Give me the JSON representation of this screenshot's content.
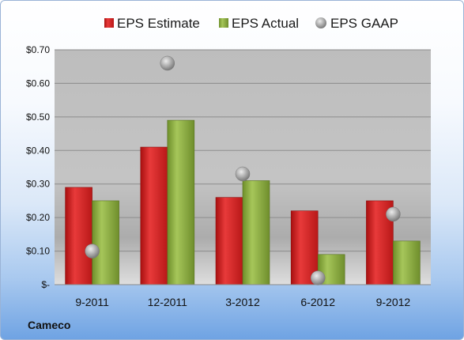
{
  "company": "Cameco",
  "colors": {
    "estimate": "#d42a2a",
    "actual": "#8aac3e",
    "gaap": "#a8a8a8"
  },
  "chart_data": {
    "type": "bar",
    "categories": [
      "9-2011",
      "12-2011",
      "3-2012",
      "6-2012",
      "9-2012"
    ],
    "series": [
      {
        "name": "EPS Estimate",
        "kind": "bar",
        "values": [
          0.29,
          0.41,
          0.26,
          0.22,
          0.25
        ]
      },
      {
        "name": "EPS Actual",
        "kind": "bar",
        "values": [
          0.25,
          0.49,
          0.31,
          0.09,
          0.13
        ]
      },
      {
        "name": "EPS GAAP",
        "kind": "scatter",
        "values": [
          0.1,
          0.66,
          0.33,
          0.02,
          0.21
        ]
      }
    ],
    "ylim": [
      0,
      0.7
    ],
    "yticks": [
      {
        "value": 0.0,
        "label": "$-"
      },
      {
        "value": 0.1,
        "label": "$0.10"
      },
      {
        "value": 0.2,
        "label": "$0.20"
      },
      {
        "value": 0.3,
        "label": "$0.30"
      },
      {
        "value": 0.4,
        "label": "$0.40"
      },
      {
        "value": 0.5,
        "label": "$0.50"
      },
      {
        "value": 0.6,
        "label": "$0.60"
      },
      {
        "value": 0.7,
        "label": "$0.70"
      }
    ],
    "grid": true,
    "legend_position": "top"
  }
}
